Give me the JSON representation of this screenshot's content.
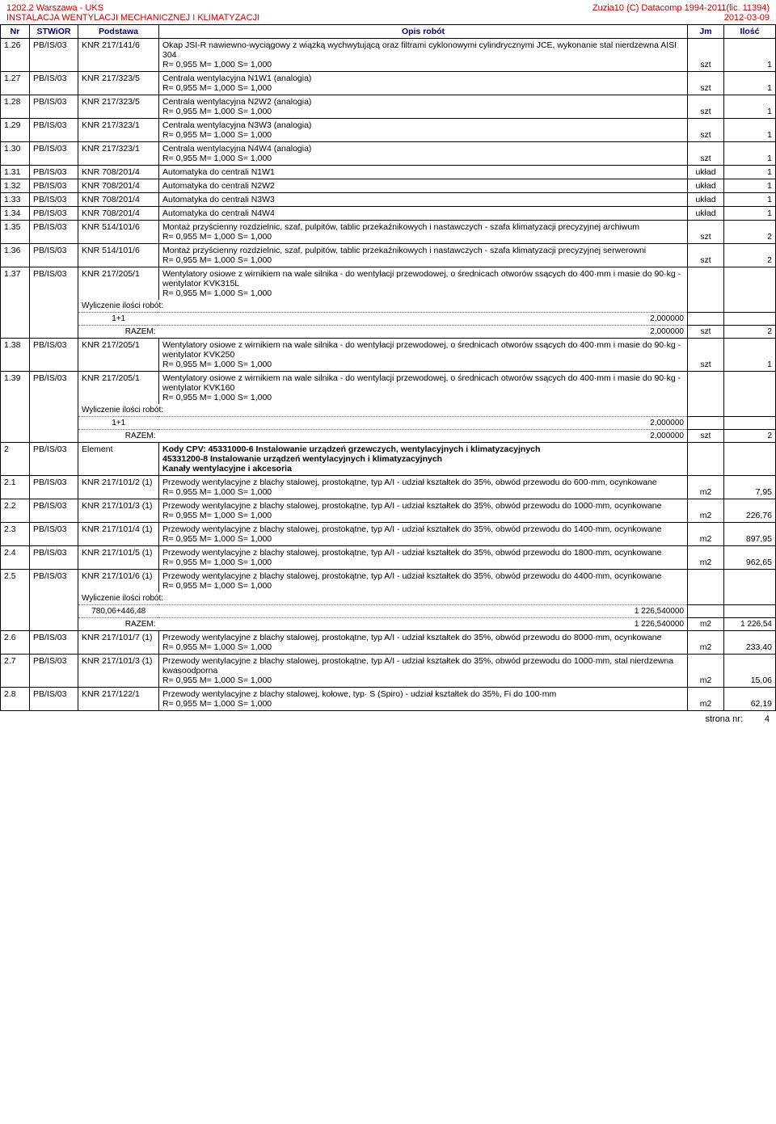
{
  "header": {
    "left_line1": "1202.2 Warszawa - UKS",
    "left_line2": "INSTALACJA WENTYLACJI MECHANICZNEJ I KLIMATYZACJI",
    "right_line1": "Zuzia10 (C) Datacomp 1994-2011(lic. 11394)",
    "right_line2": "2012-03-09"
  },
  "columns": {
    "nr": "Nr",
    "stwior": "STWiOR",
    "podstawa": "Podstawa",
    "opis": "Opis robót",
    "jm": "Jm",
    "ilosc": "Ilość"
  },
  "rms": "R= 0,955   M= 1,000   S= 1,000",
  "wyliczenie_label": "Wyliczenie ilości robót:",
  "razem_label": "RAZEM:",
  "rows": [
    {
      "nr": "1.26",
      "stwior": "PB/IS/03",
      "podstawa": "KNR 217/141/6",
      "opis": "Okap JSI-R nawiewno-wyciągowy z wiązką wychwytującą oraz filtrami cyklonowymi cylindrycznymi JCE, wykonanie stal nierdzewna AISI 304",
      "jm": "szt",
      "ilosc": "1"
    },
    {
      "nr": "1.27",
      "stwior": "PB/IS/03",
      "podstawa": "KNR 217/323/5",
      "opis": "Centrala wentylacyjna N1W1 (analogia)",
      "jm": "szt",
      "ilosc": "1"
    },
    {
      "nr": "1.28",
      "stwior": "PB/IS/03",
      "podstawa": "KNR 217/323/5",
      "opis": "Centrala wentylacyjna N2W2 (analogia)",
      "jm": "szt",
      "ilosc": "1"
    },
    {
      "nr": "1.29",
      "stwior": "PB/IS/03",
      "podstawa": "KNR 217/323/1",
      "opis": "Centrala wentylacyjna N3W3 (analogia)",
      "jm": "szt",
      "ilosc": "1"
    },
    {
      "nr": "1.30",
      "stwior": "PB/IS/03",
      "podstawa": "KNR 217/323/1",
      "opis": "Centrala wentylacyjna N4W4 (analogia)",
      "jm": "szt",
      "ilosc": "1"
    },
    {
      "nr": "1.31",
      "stwior": "PB/IS/03",
      "podstawa": "KNR 708/201/4",
      "opis": "Automatyka do centrali N1W1",
      "jm": "układ",
      "ilosc": "1",
      "no_rms": true
    },
    {
      "nr": "1.32",
      "stwior": "PB/IS/03",
      "podstawa": "KNR 708/201/4",
      "opis": "Automatyka do centrali N2W2",
      "jm": "układ",
      "ilosc": "1",
      "no_rms": true
    },
    {
      "nr": "1.33",
      "stwior": "PB/IS/03",
      "podstawa": "KNR 708/201/4",
      "opis": "Automatyka do centrali N3W3",
      "jm": "układ",
      "ilosc": "1",
      "no_rms": true
    },
    {
      "nr": "1.34",
      "stwior": "PB/IS/03",
      "podstawa": "KNR 708/201/4",
      "opis": "Automatyka do centrali N4W4",
      "jm": "układ",
      "ilosc": "1",
      "no_rms": true
    },
    {
      "nr": "1.35",
      "stwior": "PB/IS/03",
      "podstawa": "KNR 514/101/6",
      "opis": "Montaż przyścienny rozdzielnic, szaf, pulpitów, tablic przekaźnikowych i nastawczych - szafa klimatyzacji precyzyjnej archiwum",
      "jm": "szt",
      "ilosc": "2"
    },
    {
      "nr": "1.36",
      "stwior": "PB/IS/03",
      "podstawa": "KNR 514/101/6",
      "opis": "Montaż przyścienny rozdzielnic, szaf, pulpitów, tablic przekaźnikowych i nastawczych - szafa klimatyzacji precyzyjnej serwerowni",
      "jm": "szt",
      "ilosc": "2"
    },
    {
      "nr": "1.37",
      "stwior": "PB/IS/03",
      "podstawa": "KNR 217/205/1",
      "opis": "Wentylatory osiowe z wirnikiem na wale silnika - do wentylacji przewodowej, o średnicach otworów ssących do 400·mm i masie do 90·kg - wentylator KVK315L",
      "jm": "szt",
      "ilosc": "2",
      "calc": {
        "expr": "1+1",
        "val": "2,000000",
        "razem": "2,000000"
      }
    },
    {
      "nr": "1.38",
      "stwior": "PB/IS/03",
      "podstawa": "KNR 217/205/1",
      "opis": "Wentylatory osiowe z wirnikiem na wale silnika - do wentylacji przewodowej, o średnicach otworów ssących do 400·mm i masie do 90·kg - wentylator KVK250",
      "jm": "szt",
      "ilosc": "1"
    },
    {
      "nr": "1.39",
      "stwior": "PB/IS/03",
      "podstawa": "KNR 217/205/1",
      "opis": "Wentylatory osiowe z wirnikiem na wale silnika - do wentylacji przewodowej, o średnicach otworów ssących do 400·mm i masie do 90·kg - wentylator KVK160",
      "jm": "szt",
      "ilosc": "2",
      "calc": {
        "expr": "1+1",
        "val": "2,000000",
        "razem": "2,000000"
      }
    },
    {
      "section": true,
      "nr": "2",
      "stwior": "PB/IS/03",
      "podstawa": "Element",
      "opis": "Kody CPV: 45331000-6 Instalowanie urządzeń grzewczych, wentylacyjnych i klimatyzacyjnych\n45331200-8 Instalowanie urządzeń wentylacyjnych i klimatyzacyjnych\nKanały wentylacyjne i akcesoria"
    },
    {
      "nr": "2.1",
      "stwior": "PB/IS/03",
      "podstawa": "KNR 217/101/2 (1)",
      "opis": "Przewody wentylacyjne z blachy stalowej, prostokątne, typ A/I - udział kształtek do 35%, obwód przewodu do 600·mm, ocynkowane",
      "jm": "m2",
      "ilosc": "7,95"
    },
    {
      "nr": "2.2",
      "stwior": "PB/IS/03",
      "podstawa": "KNR 217/101/3 (1)",
      "opis": "Przewody wentylacyjne z blachy stalowej, prostokątne, typ A/I - udział kształtek do 35%, obwód przewodu do 1000·mm, ocynkowane",
      "jm": "m2",
      "ilosc": "226,76"
    },
    {
      "nr": "2.3",
      "stwior": "PB/IS/03",
      "podstawa": "KNR 217/101/4 (1)",
      "opis": "Przewody wentylacyjne z blachy stalowej, prostokątne, typ A/I - udział kształtek do 35%, obwód przewodu do 1400·mm, ocynkowane",
      "jm": "m2",
      "ilosc": "897,95"
    },
    {
      "nr": "2.4",
      "stwior": "PB/IS/03",
      "podstawa": "KNR 217/101/5 (1)",
      "opis": "Przewody wentylacyjne z blachy stalowej, prostokątne, typ A/I - udział kształtek do 35%, obwód przewodu do 1800·mm, ocynkowane",
      "jm": "m2",
      "ilosc": "962,65"
    },
    {
      "nr": "2.5",
      "stwior": "PB/IS/03",
      "podstawa": "KNR 217/101/6 (1)",
      "opis": "Przewody wentylacyjne z blachy stalowej, prostokątne, typ A/I - udział kształtek do 35%, obwód przewodu do 4400·mm, ocynkowane",
      "jm": "m2",
      "ilosc": "1 226,54",
      "calc": {
        "expr": "780,06+446,48",
        "val": "1 226,540000",
        "razem": "1 226,540000"
      }
    },
    {
      "nr": "2.6",
      "stwior": "PB/IS/03",
      "podstawa": "KNR 217/101/7 (1)",
      "opis": "Przewody wentylacyjne z blachy stalowej, prostokątne, typ A/I - udział kształtek do 35%, obwód przewodu do 8000·mm, ocynkowane",
      "jm": "m2",
      "ilosc": "233,40"
    },
    {
      "nr": "2.7",
      "stwior": "PB/IS/03",
      "podstawa": "KNR 217/101/3 (1)",
      "opis": "Przewody wentylacyjne z blachy stalowej, prostokątne, typ A/I - udział kształtek do 35%, obwód przewodu do 1000·mm, stal nierdzewna kwasoodporna",
      "jm": "m2",
      "ilosc": "15,06"
    },
    {
      "nr": "2.8",
      "stwior": "PB/IS/03",
      "podstawa": "KNR 217/122/1",
      "opis": "Przewody wentylacyjne z blachy stalowej, kołowe, typ· S (Spiro) - udział kształtek do 35%, Fi do 100·mm",
      "jm": "m2",
      "ilosc": "62,19"
    }
  ],
  "footer": {
    "strona": "strona nr:",
    "page": "4"
  }
}
